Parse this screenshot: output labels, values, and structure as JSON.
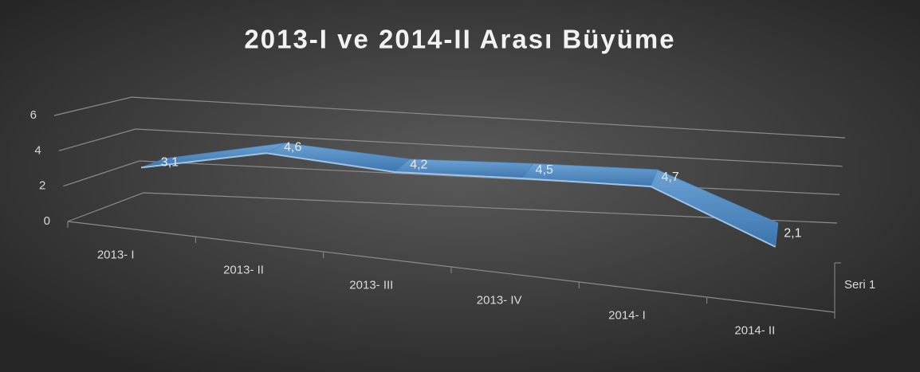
{
  "chart_data": {
    "type": "line3d",
    "title": "2013-I ve 2014-II Arası Büyüme",
    "categories": [
      "2013- I",
      "2013- II",
      "2013- III",
      "2013- IV",
      "2014- I",
      "2014- II"
    ],
    "series": [
      {
        "name": "Seri 1",
        "color": "#5b9bd5",
        "values": [
          3.1,
          4.6,
          4.2,
          4.5,
          4.7,
          2.1
        ],
        "value_labels": [
          "3,1",
          "4,6",
          "4,2",
          "4,5",
          "4,7",
          "2,1"
        ]
      }
    ],
    "ylim": [
      0,
      6
    ],
    "yticks": [
      0,
      2,
      4,
      6
    ],
    "grid": true
  }
}
